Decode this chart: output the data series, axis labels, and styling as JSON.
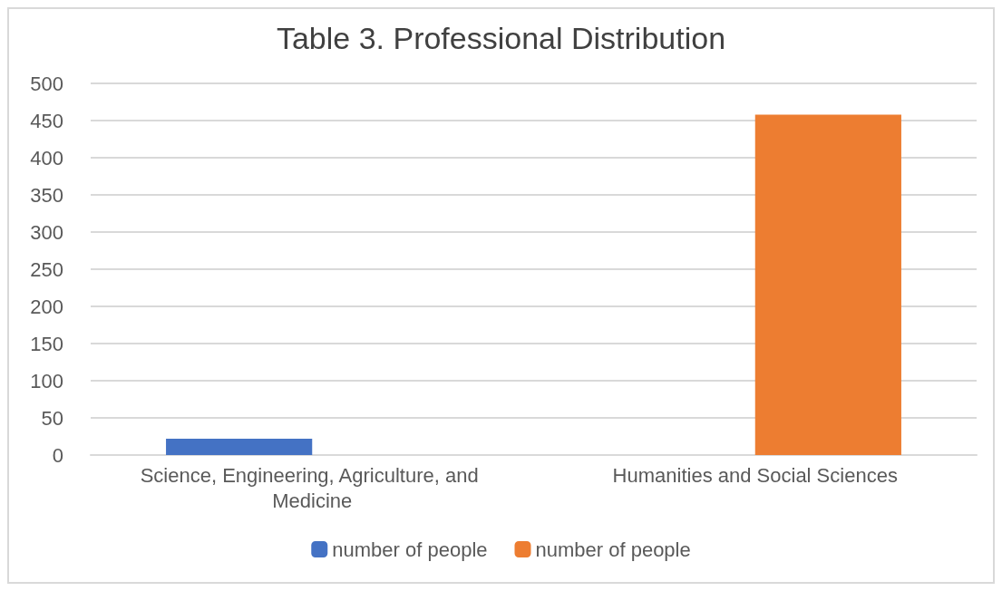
{
  "chart_data": {
    "type": "bar",
    "title": "Table 3. Professional Distribution",
    "categories": [
      "Science, Engineering, Agriculture, and Medicine",
      "Humanities and Social Sciences"
    ],
    "series": [
      {
        "name": "number of people",
        "color": "#4472c4",
        "values": [
          22,
          null
        ]
      },
      {
        "name": "number of people",
        "color": "#ed7d31",
        "values": [
          null,
          458
        ]
      }
    ],
    "ylim": [
      0,
      500
    ],
    "yticks": [
      0,
      50,
      100,
      150,
      200,
      250,
      300,
      350,
      400,
      450,
      500
    ],
    "grid": "y",
    "legend": "bottom"
  }
}
